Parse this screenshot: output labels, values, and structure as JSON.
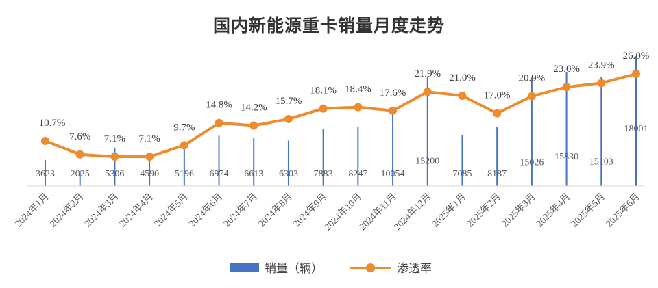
{
  "chart_data": {
    "type": "bar+line",
    "title": "国内新能源重卡销量月度走势",
    "categories": [
      "2024年1月",
      "2024年2月",
      "2024年3月",
      "2024年4月",
      "2024年5月",
      "2024年6月",
      "2024年7月",
      "2024年8月",
      "2024年9月",
      "2024年10月",
      "2024年11月",
      "2024年12月",
      "2025年1月",
      "2025年2月",
      "2025年3月",
      "2025年4月",
      "2025年5月",
      "2025年6月"
    ],
    "series": [
      {
        "name": "销量（辆）",
        "type": "bar",
        "color": "#4472C4",
        "values": [
          3623,
          2025,
          5306,
          4590,
          5196,
          6974,
          6613,
          6303,
          7883,
          8247,
          10054,
          15200,
          7085,
          8187,
          15026,
          15830,
          15103,
          18001
        ],
        "labels": [
          "3623",
          "2025",
          "5306",
          "4590",
          "5196",
          "6974",
          "6613",
          "6303",
          "7883",
          "8247",
          "10054",
          "15200",
          "7085",
          "8187",
          "15026",
          "15830",
          "15103",
          "18001"
        ]
      },
      {
        "name": "渗透率",
        "type": "line",
        "color": "#ED8B2D",
        "values": [
          10.7,
          7.6,
          7.1,
          7.1,
          9.7,
          14.8,
          14.2,
          15.7,
          18.1,
          18.4,
          17.6,
          21.9,
          21.0,
          17.0,
          20.9,
          23.0,
          23.9,
          26.0
        ],
        "labels": [
          "10.7%",
          "7.6%",
          "7.1%",
          "7.1%",
          "9.7%",
          "14.8%",
          "14.2%",
          "15.7%",
          "18.1%",
          "18.4%",
          "17.6%",
          "21.9%",
          "21.0%",
          "17.0%",
          "20.9%",
          "23.0%",
          "23.9%",
          "26.0%"
        ]
      }
    ],
    "legend": {
      "position": "bottom"
    },
    "grid": false
  }
}
